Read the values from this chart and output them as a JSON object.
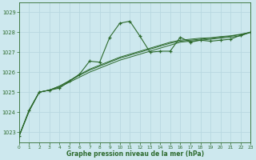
{
  "title": "Graphe pression niveau de la mer (hPa)",
  "bg_color": "#cde8ee",
  "plot_bg_color": "#cde8ee",
  "grid_color": "#b8d8e0",
  "line_color": "#2d6a2d",
  "xlim": [
    0,
    23
  ],
  "ylim": [
    1022.5,
    1029.5
  ],
  "yticks": [
    1023,
    1024,
    1025,
    1026,
    1027,
    1028,
    1029
  ],
  "xticks": [
    0,
    1,
    2,
    3,
    4,
    5,
    6,
    7,
    8,
    9,
    10,
    11,
    12,
    13,
    14,
    15,
    16,
    17,
    18,
    19,
    20,
    21,
    22,
    23
  ],
  "series1": [
    [
      0,
      1022.8
    ],
    [
      1,
      1024.1
    ],
    [
      2,
      1025.0
    ],
    [
      3,
      1025.1
    ],
    [
      4,
      1025.2
    ],
    [
      5,
      1025.55
    ],
    [
      6,
      1025.9
    ],
    [
      7,
      1026.55
    ],
    [
      8,
      1026.5
    ],
    [
      9,
      1027.75
    ],
    [
      10,
      1028.45
    ],
    [
      11,
      1028.55
    ],
    [
      12,
      1027.8
    ],
    [
      13,
      1027.0
    ],
    [
      14,
      1027.05
    ],
    [
      15,
      1027.05
    ],
    [
      16,
      1027.75
    ],
    [
      17,
      1027.5
    ],
    [
      18,
      1027.6
    ],
    [
      19,
      1027.55
    ],
    [
      20,
      1027.6
    ],
    [
      21,
      1027.65
    ],
    [
      22,
      1027.85
    ],
    [
      23,
      1028.0
    ]
  ],
  "series2": [
    [
      0,
      1022.8
    ],
    [
      1,
      1024.1
    ],
    [
      2,
      1025.0
    ],
    [
      3,
      1025.1
    ],
    [
      4,
      1025.25
    ],
    [
      5,
      1025.5
    ],
    [
      6,
      1025.75
    ],
    [
      7,
      1026.0
    ],
    [
      8,
      1026.2
    ],
    [
      9,
      1026.4
    ],
    [
      10,
      1026.6
    ],
    [
      11,
      1026.75
    ],
    [
      12,
      1026.9
    ],
    [
      13,
      1027.05
    ],
    [
      14,
      1027.2
    ],
    [
      15,
      1027.35
    ],
    [
      16,
      1027.5
    ],
    [
      17,
      1027.55
    ],
    [
      18,
      1027.6
    ],
    [
      19,
      1027.65
    ],
    [
      20,
      1027.7
    ],
    [
      21,
      1027.75
    ],
    [
      22,
      1027.82
    ],
    [
      23,
      1028.0
    ]
  ],
  "series3": [
    [
      0,
      1022.8
    ],
    [
      1,
      1024.05
    ],
    [
      2,
      1025.0
    ],
    [
      3,
      1025.1
    ],
    [
      4,
      1025.3
    ],
    [
      5,
      1025.55
    ],
    [
      6,
      1025.85
    ],
    [
      7,
      1026.1
    ],
    [
      8,
      1026.3
    ],
    [
      9,
      1026.5
    ],
    [
      10,
      1026.7
    ],
    [
      11,
      1026.85
    ],
    [
      12,
      1027.0
    ],
    [
      13,
      1027.15
    ],
    [
      14,
      1027.3
    ],
    [
      15,
      1027.45
    ],
    [
      16,
      1027.55
    ],
    [
      17,
      1027.6
    ],
    [
      18,
      1027.65
    ],
    [
      19,
      1027.7
    ],
    [
      20,
      1027.75
    ],
    [
      21,
      1027.8
    ],
    [
      22,
      1027.88
    ],
    [
      23,
      1028.0
    ]
  ],
  "series4": [
    [
      0,
      1022.8
    ],
    [
      1,
      1024.05
    ],
    [
      2,
      1025.0
    ],
    [
      3,
      1025.1
    ],
    [
      4,
      1025.3
    ],
    [
      5,
      1025.58
    ],
    [
      6,
      1025.88
    ],
    [
      7,
      1026.15
    ],
    [
      8,
      1026.35
    ],
    [
      9,
      1026.55
    ],
    [
      10,
      1026.75
    ],
    [
      11,
      1026.9
    ],
    [
      12,
      1027.05
    ],
    [
      13,
      1027.2
    ],
    [
      14,
      1027.35
    ],
    [
      15,
      1027.5
    ],
    [
      16,
      1027.6
    ],
    [
      17,
      1027.65
    ],
    [
      18,
      1027.7
    ],
    [
      19,
      1027.72
    ],
    [
      20,
      1027.78
    ],
    [
      21,
      1027.82
    ],
    [
      22,
      1027.9
    ],
    [
      23,
      1028.0
    ]
  ]
}
